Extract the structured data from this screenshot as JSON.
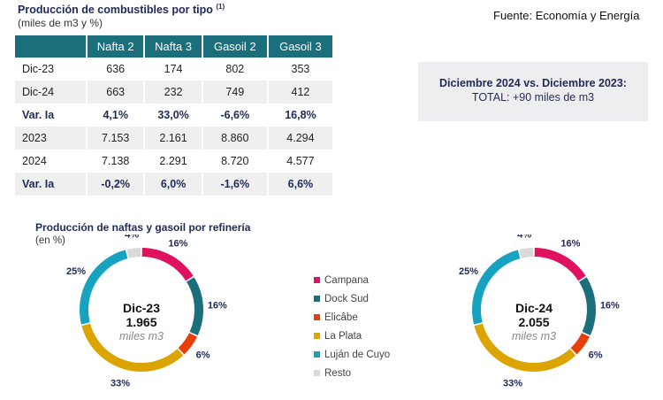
{
  "header": {
    "title": "Producción de combustibles por tipo",
    "footnote": "(1)",
    "subtitle": "(miles de m3 y %)",
    "source": "Fuente: Economía y Energía"
  },
  "table": {
    "columns": [
      "",
      "Nafta 2",
      "Nafta 3",
      "Gasoil 2",
      "Gasoil 3"
    ],
    "rows": [
      [
        "Dic-23",
        "636",
        "174",
        "802",
        "353"
      ],
      [
        "Dic-24",
        "663",
        "232",
        "749",
        "412"
      ],
      [
        "Var. Ia",
        "4,1%",
        "33,0%",
        "-6,6%",
        "16,8%"
      ],
      [
        "2023",
        "7.153",
        "2.161",
        "8.860",
        "4.294"
      ],
      [
        "2024",
        "7.138",
        "2.291",
        "8.720",
        "4.577"
      ],
      [
        "Var. Ia",
        "-0,2%",
        "6,0%",
        "-1,6%",
        "6,6%"
      ]
    ]
  },
  "summary": {
    "heading": "Diciembre 2024 vs. Diciembre 2023:",
    "total": "TOTAL: +90 miles de m3"
  },
  "chart_data": [
    {
      "type": "pie",
      "title": "Producción de naftas y gasoil por refinería",
      "subtitle": "(en %)",
      "center_label": "Dic-23",
      "center_value": "1.965",
      "center_unit": "miles m3",
      "categories": [
        "Campana",
        "Dock Sud",
        "Elicâbe",
        "La Plata",
        "Luján de Cuyo",
        "Resto"
      ],
      "values": [
        16,
        16,
        6,
        33,
        25,
        4
      ],
      "labels": [
        "16%",
        "16%",
        "6%",
        "33%",
        "25%",
        "4%"
      ],
      "colors": [
        "#e0125f",
        "#1b6f7d",
        "#e8400c",
        "#dca400",
        "#17a2c0",
        "#d9d9d9"
      ],
      "legend": "center"
    },
    {
      "type": "pie",
      "center_label": "Dic-24",
      "center_value": "2.055",
      "center_unit": "miles m3",
      "categories": [
        "Campana",
        "Dock Sud",
        "Elicâbe",
        "La Plata",
        "Luján de Cuyo",
        "Resto"
      ],
      "values": [
        16,
        16,
        6,
        33,
        25,
        4
      ],
      "labels": [
        "16%",
        "16%",
        "6%",
        "33%",
        "25%",
        "4%"
      ],
      "colors": [
        "#e0125f",
        "#1b6f7d",
        "#e8400c",
        "#dca400",
        "#17a2c0",
        "#d9d9d9"
      ]
    }
  ]
}
